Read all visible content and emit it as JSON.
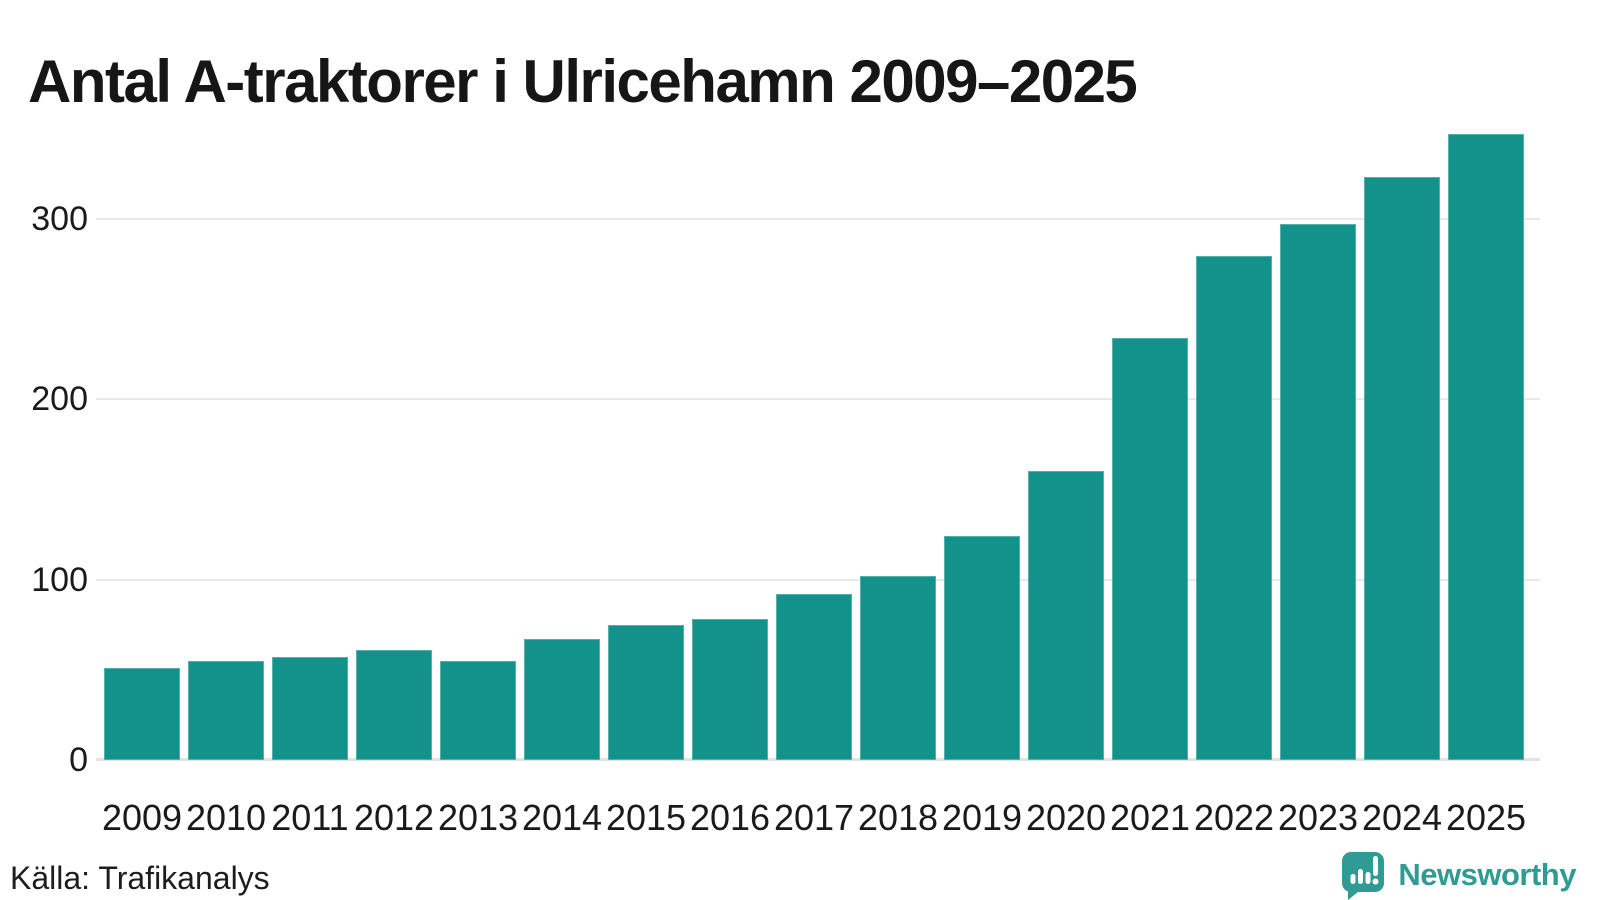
{
  "title": "Antal A-traktorer i Ulricehamn 2009–2025",
  "source_note": "Källa: Trafikanalys",
  "branding": {
    "name": "Newsworthy"
  },
  "colors": {
    "bar": "#12928B",
    "gridline": "#E9E9EC",
    "axis_line": "#E2E2E6",
    "title_text": "#161616",
    "tick_text": "#1A1A1A",
    "source_text": "#1D1D1D",
    "brand_teal": "#2F9B94",
    "background": "#FFFFFF"
  },
  "chart_data": {
    "type": "bar",
    "title": "Antal A-traktorer i Ulricehamn 2009–2025",
    "categories": [
      "2009",
      "2010",
      "2011",
      "2012",
      "2013",
      "2014",
      "2015",
      "2016",
      "2017",
      "2018",
      "2019",
      "2020",
      "2021",
      "2022",
      "2023",
      "2024",
      "2025"
    ],
    "values": [
      51,
      55,
      57,
      61,
      55,
      67,
      75,
      78,
      92,
      102,
      124,
      160,
      234,
      279,
      297,
      323,
      347
    ],
    "xlabel": "",
    "ylabel": "",
    "yticks": [
      0,
      100,
      200,
      300
    ],
    "ylim": [
      0,
      350
    ],
    "grid": true,
    "legend": false,
    "bar_color": "#12928B"
  }
}
